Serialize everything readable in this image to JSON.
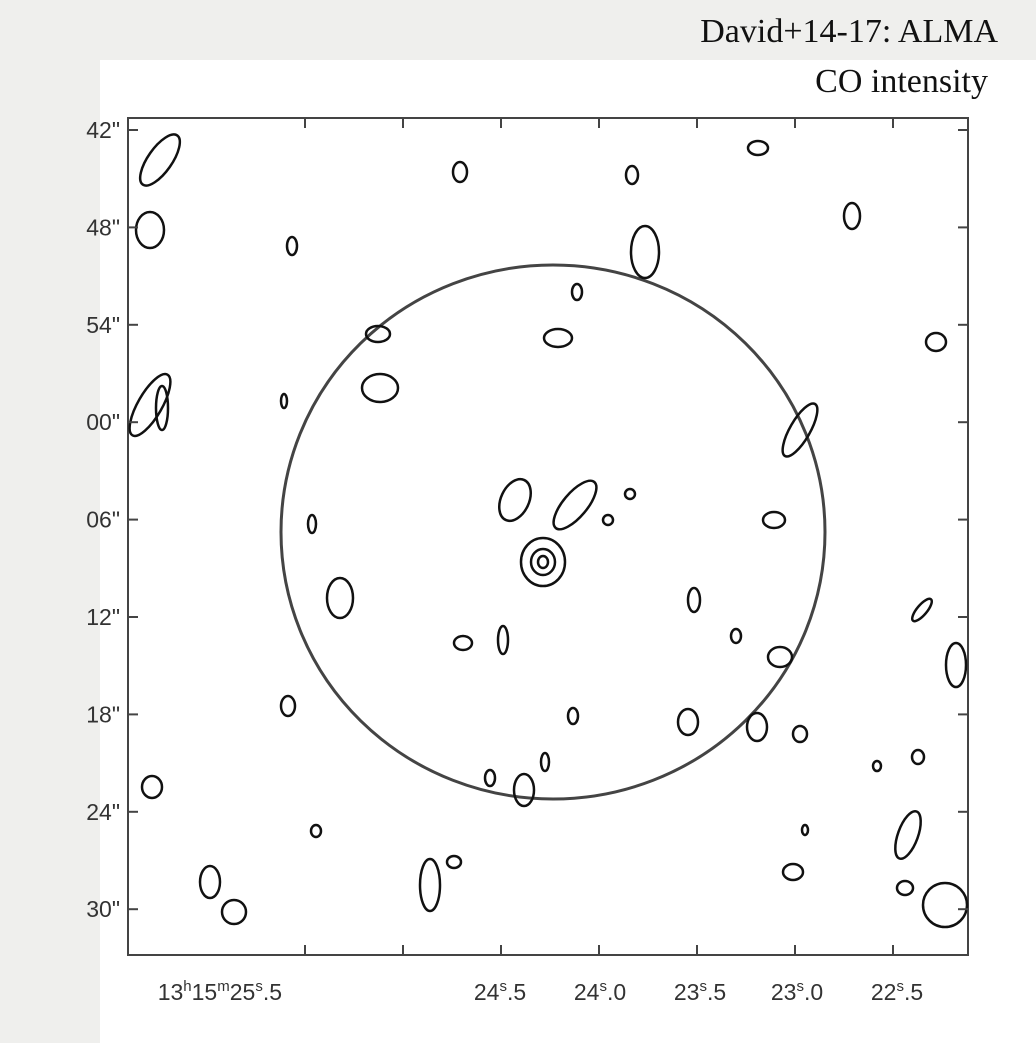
{
  "caption": [
    "David+14-17: ALMA",
    "CO intensity"
  ],
  "y_axis": {
    "tick_labels": [
      "42\"",
      "48\"",
      "54\"",
      "00\"",
      "06\"",
      "12\"",
      "18\"",
      "24\"",
      "30\""
    ]
  },
  "x_axis": {
    "tick_labels": [
      [
        [
          "13",
          "h"
        ],
        [
          "15",
          "m"
        ],
        [
          "25",
          "s"
        ],
        [
          ".5"
        ]
      ],
      [
        [
          "24",
          "s"
        ],
        [
          ".5"
        ]
      ],
      [
        [
          "24",
          "s"
        ],
        [
          ".0"
        ]
      ],
      [
        [
          "23",
          "s"
        ],
        [
          ".5"
        ]
      ],
      [
        [
          "23",
          "s"
        ],
        [
          ".0"
        ]
      ],
      [
        [
          "22",
          "s"
        ],
        [
          ".5"
        ]
      ]
    ]
  }
}
